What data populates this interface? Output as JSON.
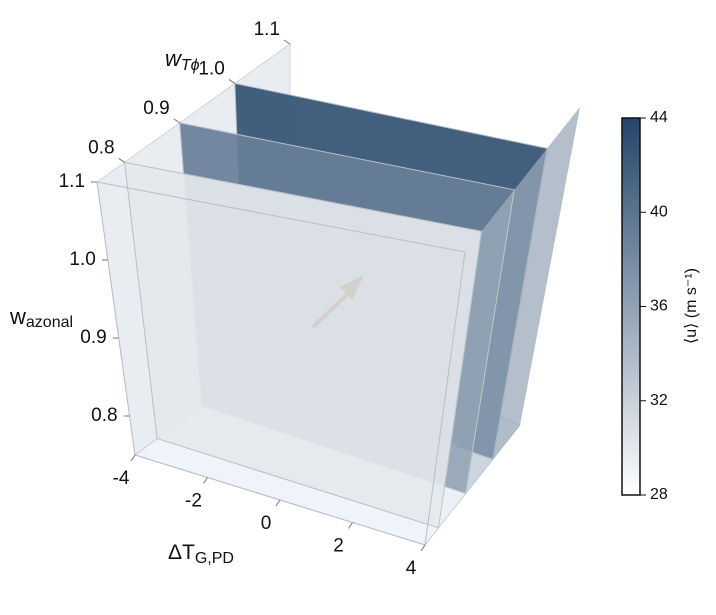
{
  "chart_data": {
    "type": "slices3d",
    "x_label": {
      "main": "ΔT",
      "sub": "G,PD"
    },
    "depth_label": {
      "main": "w",
      "sub": "Tϕ"
    },
    "z_label": {
      "main": "w",
      "sub": "azonal"
    },
    "xlim": [
      -4,
      4
    ],
    "xticks": [
      -4,
      -2,
      0,
      2,
      4
    ],
    "depthlim": [
      0.75,
      1.1
    ],
    "depthticks": [
      0.8,
      0.9,
      {
        "value": 1,
        "label": "1.0"
      },
      1.1
    ],
    "zlim": [
      0.75,
      1.1
    ],
    "zticks": [
      0.8,
      0.9,
      {
        "value": 1,
        "label": "1.0"
      },
      1.1
    ],
    "slices": [
      {
        "depth": 1.0,
        "value": 43
      },
      {
        "depth": 0.9,
        "value": 39
      },
      {
        "depth": 0.8,
        "value": 30
      }
    ],
    "colorbar": {
      "label": "⟨u⟩ (m s⁻¹)",
      "clim": [
        28,
        44
      ],
      "ticks": [
        28,
        32,
        36,
        40,
        44
      ],
      "colormap": [
        "#ffffff",
        "#24456a"
      ]
    }
  }
}
